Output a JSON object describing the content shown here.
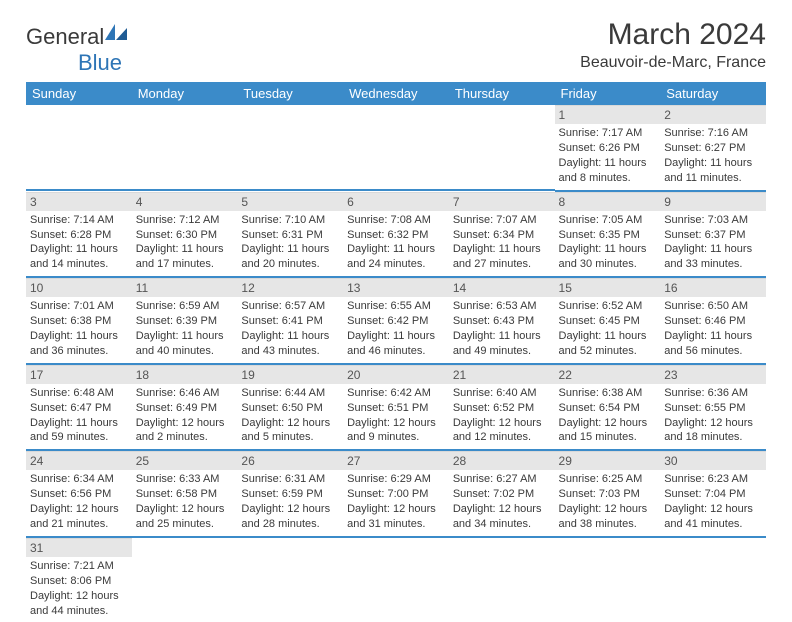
{
  "logo": {
    "text1": "General",
    "text2": "Blue"
  },
  "title": "March 2024",
  "location": "Beauvoir-de-Marc, France",
  "colors": {
    "header_bg": "#3b8bc9",
    "header_text": "#ffffff",
    "daynum_bg": "#e6e6e6",
    "border": "#3b8bc9",
    "text": "#3a3a3a",
    "logo_blue": "#2e75b6"
  },
  "day_headers": [
    "Sunday",
    "Monday",
    "Tuesday",
    "Wednesday",
    "Thursday",
    "Friday",
    "Saturday"
  ],
  "weeks": [
    [
      {
        "day": "",
        "lines": [
          "",
          "",
          "",
          ""
        ]
      },
      {
        "day": "",
        "lines": [
          "",
          "",
          "",
          ""
        ]
      },
      {
        "day": "",
        "lines": [
          "",
          "",
          "",
          ""
        ]
      },
      {
        "day": "",
        "lines": [
          "",
          "",
          "",
          ""
        ]
      },
      {
        "day": "",
        "lines": [
          "",
          "",
          "",
          ""
        ]
      },
      {
        "day": "1",
        "lines": [
          "Sunrise: 7:17 AM",
          "Sunset: 6:26 PM",
          "Daylight: 11 hours",
          "and 8 minutes."
        ]
      },
      {
        "day": "2",
        "lines": [
          "Sunrise: 7:16 AM",
          "Sunset: 6:27 PM",
          "Daylight: 11 hours",
          "and 11 minutes."
        ]
      }
    ],
    [
      {
        "day": "3",
        "lines": [
          "Sunrise: 7:14 AM",
          "Sunset: 6:28 PM",
          "Daylight: 11 hours",
          "and 14 minutes."
        ]
      },
      {
        "day": "4",
        "lines": [
          "Sunrise: 7:12 AM",
          "Sunset: 6:30 PM",
          "Daylight: 11 hours",
          "and 17 minutes."
        ]
      },
      {
        "day": "5",
        "lines": [
          "Sunrise: 7:10 AM",
          "Sunset: 6:31 PM",
          "Daylight: 11 hours",
          "and 20 minutes."
        ]
      },
      {
        "day": "6",
        "lines": [
          "Sunrise: 7:08 AM",
          "Sunset: 6:32 PM",
          "Daylight: 11 hours",
          "and 24 minutes."
        ]
      },
      {
        "day": "7",
        "lines": [
          "Sunrise: 7:07 AM",
          "Sunset: 6:34 PM",
          "Daylight: 11 hours",
          "and 27 minutes."
        ]
      },
      {
        "day": "8",
        "lines": [
          "Sunrise: 7:05 AM",
          "Sunset: 6:35 PM",
          "Daylight: 11 hours",
          "and 30 minutes."
        ]
      },
      {
        "day": "9",
        "lines": [
          "Sunrise: 7:03 AM",
          "Sunset: 6:37 PM",
          "Daylight: 11 hours",
          "and 33 minutes."
        ]
      }
    ],
    [
      {
        "day": "10",
        "lines": [
          "Sunrise: 7:01 AM",
          "Sunset: 6:38 PM",
          "Daylight: 11 hours",
          "and 36 minutes."
        ]
      },
      {
        "day": "11",
        "lines": [
          "Sunrise: 6:59 AM",
          "Sunset: 6:39 PM",
          "Daylight: 11 hours",
          "and 40 minutes."
        ]
      },
      {
        "day": "12",
        "lines": [
          "Sunrise: 6:57 AM",
          "Sunset: 6:41 PM",
          "Daylight: 11 hours",
          "and 43 minutes."
        ]
      },
      {
        "day": "13",
        "lines": [
          "Sunrise: 6:55 AM",
          "Sunset: 6:42 PM",
          "Daylight: 11 hours",
          "and 46 minutes."
        ]
      },
      {
        "day": "14",
        "lines": [
          "Sunrise: 6:53 AM",
          "Sunset: 6:43 PM",
          "Daylight: 11 hours",
          "and 49 minutes."
        ]
      },
      {
        "day": "15",
        "lines": [
          "Sunrise: 6:52 AM",
          "Sunset: 6:45 PM",
          "Daylight: 11 hours",
          "and 52 minutes."
        ]
      },
      {
        "day": "16",
        "lines": [
          "Sunrise: 6:50 AM",
          "Sunset: 6:46 PM",
          "Daylight: 11 hours",
          "and 56 minutes."
        ]
      }
    ],
    [
      {
        "day": "17",
        "lines": [
          "Sunrise: 6:48 AM",
          "Sunset: 6:47 PM",
          "Daylight: 11 hours",
          "and 59 minutes."
        ]
      },
      {
        "day": "18",
        "lines": [
          "Sunrise: 6:46 AM",
          "Sunset: 6:49 PM",
          "Daylight: 12 hours",
          "and 2 minutes."
        ]
      },
      {
        "day": "19",
        "lines": [
          "Sunrise: 6:44 AM",
          "Sunset: 6:50 PM",
          "Daylight: 12 hours",
          "and 5 minutes."
        ]
      },
      {
        "day": "20",
        "lines": [
          "Sunrise: 6:42 AM",
          "Sunset: 6:51 PM",
          "Daylight: 12 hours",
          "and 9 minutes."
        ]
      },
      {
        "day": "21",
        "lines": [
          "Sunrise: 6:40 AM",
          "Sunset: 6:52 PM",
          "Daylight: 12 hours",
          "and 12 minutes."
        ]
      },
      {
        "day": "22",
        "lines": [
          "Sunrise: 6:38 AM",
          "Sunset: 6:54 PM",
          "Daylight: 12 hours",
          "and 15 minutes."
        ]
      },
      {
        "day": "23",
        "lines": [
          "Sunrise: 6:36 AM",
          "Sunset: 6:55 PM",
          "Daylight: 12 hours",
          "and 18 minutes."
        ]
      }
    ],
    [
      {
        "day": "24",
        "lines": [
          "Sunrise: 6:34 AM",
          "Sunset: 6:56 PM",
          "Daylight: 12 hours",
          "and 21 minutes."
        ]
      },
      {
        "day": "25",
        "lines": [
          "Sunrise: 6:33 AM",
          "Sunset: 6:58 PM",
          "Daylight: 12 hours",
          "and 25 minutes."
        ]
      },
      {
        "day": "26",
        "lines": [
          "Sunrise: 6:31 AM",
          "Sunset: 6:59 PM",
          "Daylight: 12 hours",
          "and 28 minutes."
        ]
      },
      {
        "day": "27",
        "lines": [
          "Sunrise: 6:29 AM",
          "Sunset: 7:00 PM",
          "Daylight: 12 hours",
          "and 31 minutes."
        ]
      },
      {
        "day": "28",
        "lines": [
          "Sunrise: 6:27 AM",
          "Sunset: 7:02 PM",
          "Daylight: 12 hours",
          "and 34 minutes."
        ]
      },
      {
        "day": "29",
        "lines": [
          "Sunrise: 6:25 AM",
          "Sunset: 7:03 PM",
          "Daylight: 12 hours",
          "and 38 minutes."
        ]
      },
      {
        "day": "30",
        "lines": [
          "Sunrise: 6:23 AM",
          "Sunset: 7:04 PM",
          "Daylight: 12 hours",
          "and 41 minutes."
        ]
      }
    ],
    [
      {
        "day": "31",
        "lines": [
          "Sunrise: 7:21 AM",
          "Sunset: 8:06 PM",
          "Daylight: 12 hours",
          "and 44 minutes."
        ]
      },
      {
        "day": "",
        "lines": [
          "",
          "",
          "",
          ""
        ]
      },
      {
        "day": "",
        "lines": [
          "",
          "",
          "",
          ""
        ]
      },
      {
        "day": "",
        "lines": [
          "",
          "",
          "",
          ""
        ]
      },
      {
        "day": "",
        "lines": [
          "",
          "",
          "",
          ""
        ]
      },
      {
        "day": "",
        "lines": [
          "",
          "",
          "",
          ""
        ]
      },
      {
        "day": "",
        "lines": [
          "",
          "",
          "",
          ""
        ]
      }
    ]
  ]
}
